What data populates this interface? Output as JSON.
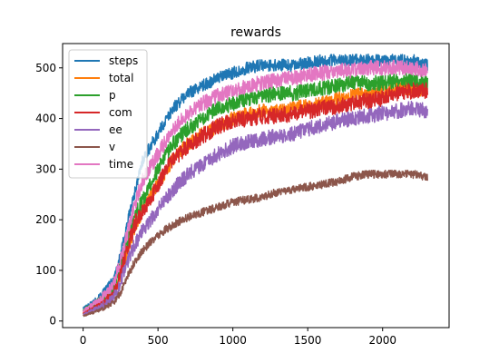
{
  "chart_data": {
    "type": "line",
    "title": "rewards",
    "xlabel": "",
    "ylabel": "",
    "xlim": [
      -137,
      2444
    ],
    "ylim": [
      -13,
      548
    ],
    "xticks": [
      0,
      500,
      1000,
      1500,
      2000
    ],
    "yticks": [
      0,
      100,
      200,
      300,
      400,
      500
    ],
    "xtick_labels": [
      "0",
      "500",
      "1000",
      "1500",
      "2000"
    ],
    "ytick_labels": [
      "0",
      "100",
      "200",
      "300",
      "400",
      "500"
    ],
    "grid": false,
    "legend_position": "top-left",
    "x_range": [
      0,
      2300
    ],
    "series": [
      {
        "name": "steps",
        "color": "#1f77b4",
        "noise": 12,
        "points": [
          [
            0,
            25
          ],
          [
            100,
            45
          ],
          [
            200,
            80
          ],
          [
            250,
            130
          ],
          [
            300,
            200
          ],
          [
            350,
            260
          ],
          [
            400,
            320
          ],
          [
            500,
            370
          ],
          [
            600,
            420
          ],
          [
            700,
            450
          ],
          [
            800,
            465
          ],
          [
            900,
            480
          ],
          [
            1000,
            490
          ],
          [
            1100,
            500
          ],
          [
            1200,
            505
          ],
          [
            1300,
            505
          ],
          [
            1400,
            505
          ],
          [
            1500,
            510
          ],
          [
            1600,
            515
          ],
          [
            1700,
            515
          ],
          [
            1800,
            515
          ],
          [
            1900,
            515
          ],
          [
            2000,
            515
          ],
          [
            2100,
            515
          ],
          [
            2200,
            515
          ],
          [
            2300,
            505
          ]
        ]
      },
      {
        "name": "total",
        "color": "#ff7f0e",
        "noise": 14,
        "points": [
          [
            0,
            15
          ],
          [
            100,
            30
          ],
          [
            200,
            50
          ],
          [
            250,
            90
          ],
          [
            300,
            140
          ],
          [
            350,
            190
          ],
          [
            400,
            220
          ],
          [
            500,
            270
          ],
          [
            600,
            320
          ],
          [
            700,
            350
          ],
          [
            800,
            370
          ],
          [
            900,
            385
          ],
          [
            1000,
            400
          ],
          [
            1100,
            410
          ],
          [
            1200,
            415
          ],
          [
            1300,
            415
          ],
          [
            1400,
            420
          ],
          [
            1500,
            425
          ],
          [
            1600,
            430
          ],
          [
            1700,
            440
          ],
          [
            1800,
            445
          ],
          [
            1900,
            450
          ],
          [
            2000,
            455
          ],
          [
            2100,
            460
          ],
          [
            2200,
            460
          ],
          [
            2300,
            455
          ]
        ]
      },
      {
        "name": "p",
        "color": "#2ca02c",
        "noise": 15,
        "points": [
          [
            0,
            22
          ],
          [
            100,
            38
          ],
          [
            200,
            60
          ],
          [
            250,
            110
          ],
          [
            300,
            160
          ],
          [
            350,
            210
          ],
          [
            400,
            240
          ],
          [
            500,
            300
          ],
          [
            600,
            350
          ],
          [
            700,
            380
          ],
          [
            800,
            400
          ],
          [
            900,
            420
          ],
          [
            1000,
            430
          ],
          [
            1100,
            440
          ],
          [
            1200,
            445
          ],
          [
            1300,
            450
          ],
          [
            1400,
            450
          ],
          [
            1500,
            455
          ],
          [
            1600,
            460
          ],
          [
            1700,
            465
          ],
          [
            1800,
            470
          ],
          [
            1900,
            470
          ],
          [
            2000,
            470
          ],
          [
            2100,
            475
          ],
          [
            2200,
            475
          ],
          [
            2300,
            470
          ]
        ]
      },
      {
        "name": "com",
        "color": "#d62728",
        "noise": 16,
        "points": [
          [
            0,
            15
          ],
          [
            100,
            30
          ],
          [
            200,
            50
          ],
          [
            250,
            95
          ],
          [
            300,
            150
          ],
          [
            350,
            195
          ],
          [
            400,
            215
          ],
          [
            500,
            270
          ],
          [
            600,
            320
          ],
          [
            700,
            345
          ],
          [
            800,
            365
          ],
          [
            900,
            385
          ],
          [
            1000,
            395
          ],
          [
            1100,
            400
          ],
          [
            1200,
            405
          ],
          [
            1300,
            405
          ],
          [
            1400,
            410
          ],
          [
            1500,
            415
          ],
          [
            1600,
            420
          ],
          [
            1700,
            425
          ],
          [
            1800,
            430
          ],
          [
            1900,
            435
          ],
          [
            2000,
            440
          ],
          [
            2100,
            450
          ],
          [
            2200,
            455
          ],
          [
            2300,
            455
          ]
        ]
      },
      {
        "name": "ee",
        "color": "#9467bd",
        "noise": 15,
        "points": [
          [
            0,
            12
          ],
          [
            100,
            25
          ],
          [
            200,
            42
          ],
          [
            250,
            75
          ],
          [
            300,
            120
          ],
          [
            350,
            155
          ],
          [
            400,
            180
          ],
          [
            500,
            220
          ],
          [
            600,
            260
          ],
          [
            700,
            290
          ],
          [
            800,
            310
          ],
          [
            900,
            330
          ],
          [
            1000,
            345
          ],
          [
            1100,
            355
          ],
          [
            1200,
            360
          ],
          [
            1300,
            365
          ],
          [
            1400,
            370
          ],
          [
            1500,
            380
          ],
          [
            1600,
            385
          ],
          [
            1700,
            395
          ],
          [
            1800,
            400
          ],
          [
            1900,
            405
          ],
          [
            2000,
            410
          ],
          [
            2100,
            415
          ],
          [
            2200,
            420
          ],
          [
            2300,
            415
          ]
        ]
      },
      {
        "name": "v",
        "color": "#8c564b",
        "noise": 8,
        "points": [
          [
            0,
            10
          ],
          [
            100,
            20
          ],
          [
            200,
            35
          ],
          [
            250,
            55
          ],
          [
            300,
            90
          ],
          [
            350,
            120
          ],
          [
            400,
            140
          ],
          [
            500,
            170
          ],
          [
            600,
            190
          ],
          [
            700,
            205
          ],
          [
            800,
            215
          ],
          [
            900,
            225
          ],
          [
            1000,
            235
          ],
          [
            1100,
            240
          ],
          [
            1200,
            245
          ],
          [
            1300,
            255
          ],
          [
            1400,
            260
          ],
          [
            1500,
            265
          ],
          [
            1600,
            270
          ],
          [
            1700,
            275
          ],
          [
            1800,
            285
          ],
          [
            1900,
            290
          ],
          [
            2000,
            290
          ],
          [
            2100,
            290
          ],
          [
            2200,
            290
          ],
          [
            2300,
            285
          ]
        ]
      },
      {
        "name": "time",
        "color": "#e377c2",
        "noise": 15,
        "points": [
          [
            0,
            20
          ],
          [
            100,
            40
          ],
          [
            200,
            70
          ],
          [
            250,
            120
          ],
          [
            300,
            180
          ],
          [
            350,
            235
          ],
          [
            400,
            280
          ],
          [
            500,
            330
          ],
          [
            600,
            380
          ],
          [
            700,
            410
          ],
          [
            800,
            430
          ],
          [
            900,
            445
          ],
          [
            1000,
            455
          ],
          [
            1100,
            465
          ],
          [
            1200,
            470
          ],
          [
            1300,
            475
          ],
          [
            1400,
            480
          ],
          [
            1500,
            485
          ],
          [
            1600,
            490
          ],
          [
            1700,
            495
          ],
          [
            1800,
            495
          ],
          [
            1900,
            500
          ],
          [
            2000,
            500
          ],
          [
            2100,
            500
          ],
          [
            2200,
            500
          ],
          [
            2300,
            495
          ]
        ]
      }
    ]
  }
}
